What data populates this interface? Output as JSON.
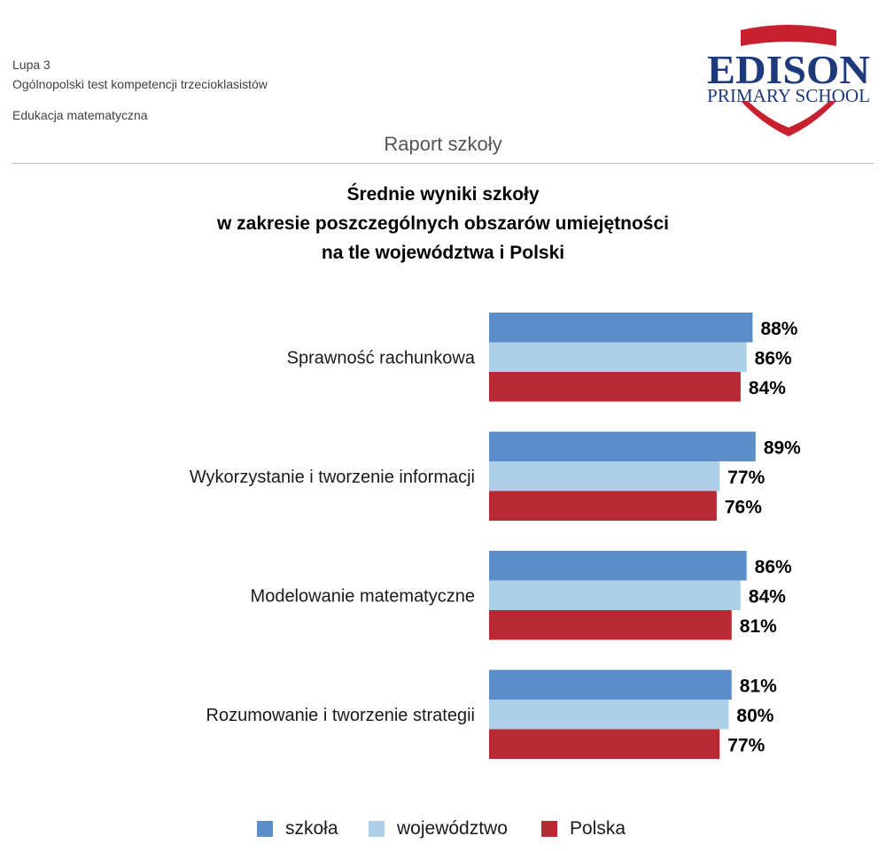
{
  "header": {
    "line1": "Lupa 3",
    "line2": "Ogólnopolski test kompetencji trzecioklasistów",
    "line3": "Edukacja matematyczna",
    "report_title": "Raport szkoły"
  },
  "logo": {
    "name": "EDISON",
    "subtitle": "PRIMARY SCHOOL",
    "colors": {
      "navy": "#1f3a7a",
      "red": "#c8202f"
    }
  },
  "chart_data": {
    "type": "bar",
    "orientation": "horizontal",
    "title_lines": [
      "Średnie wyniki szkoły",
      "w zakresie poszczególnych obszarów umiejętności",
      "na tle województwa i Polski"
    ],
    "categories": [
      "Sprawność rachunkowa",
      "Wykorzystanie i tworzenie informacji",
      "Modelowanie matematyczne",
      "Rozumowanie i tworzenie strategii"
    ],
    "series": [
      {
        "name": "szkoła",
        "color": "#5b8dc8",
        "values": [
          88,
          89,
          86,
          81
        ]
      },
      {
        "name": "województwo",
        "color": "#abd0e8",
        "values": [
          86,
          77,
          84,
          80
        ]
      },
      {
        "name": "Polska",
        "color": "#b72a33",
        "values": [
          84,
          76,
          81,
          77
        ]
      }
    ],
    "value_suffix": "%",
    "xlim": [
      0,
      100
    ],
    "grid": false,
    "legend_position": "bottom"
  }
}
